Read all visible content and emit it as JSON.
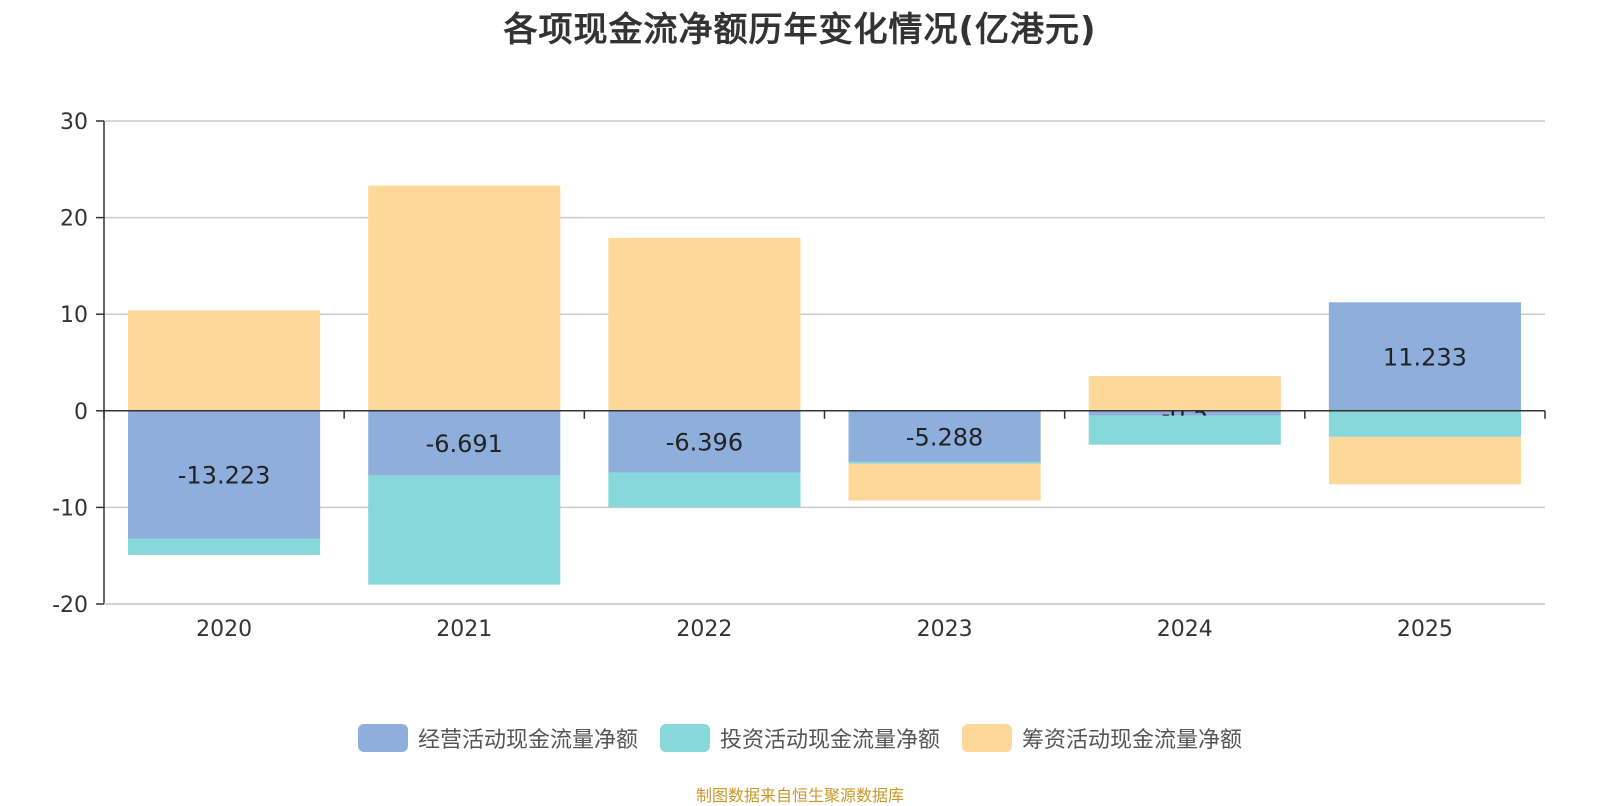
{
  "chart_data": {
    "type": "bar",
    "stacked": true,
    "title": "各项现金流净额历年变化情况(亿港元)",
    "categories": [
      "2020",
      "2021",
      "2022",
      "2023",
      "2024",
      "2025"
    ],
    "series": [
      {
        "name": "经营活动现金流量净额",
        "color": "#8eafdc",
        "values": [
          -13.223,
          -6.691,
          -6.396,
          -5.288,
          -0.5,
          11.233
        ],
        "labels": [
          "-13.223",
          "-6.691",
          "-6.396",
          "-5.288",
          "-0.5",
          "11.233"
        ]
      },
      {
        "name": "投资活动现金流量净额",
        "color": "#88d7da",
        "values": [
          -1.7,
          -11.3,
          -3.6,
          -0.2,
          -3.0,
          -2.7
        ]
      },
      {
        "name": "筹资活动现金流量净额",
        "color": "#fdd899",
        "values": [
          10.4,
          23.3,
          17.9,
          -3.8,
          3.6,
          -4.9
        ]
      }
    ],
    "ylim": [
      -20,
      30
    ],
    "yticks": [
      30,
      20,
      10,
      0,
      -10,
      -20
    ],
    "xlabel": "",
    "ylabel": "",
    "legend_position": "bottom-center"
  },
  "source_text": "制图数据来自恒生聚源数据库"
}
